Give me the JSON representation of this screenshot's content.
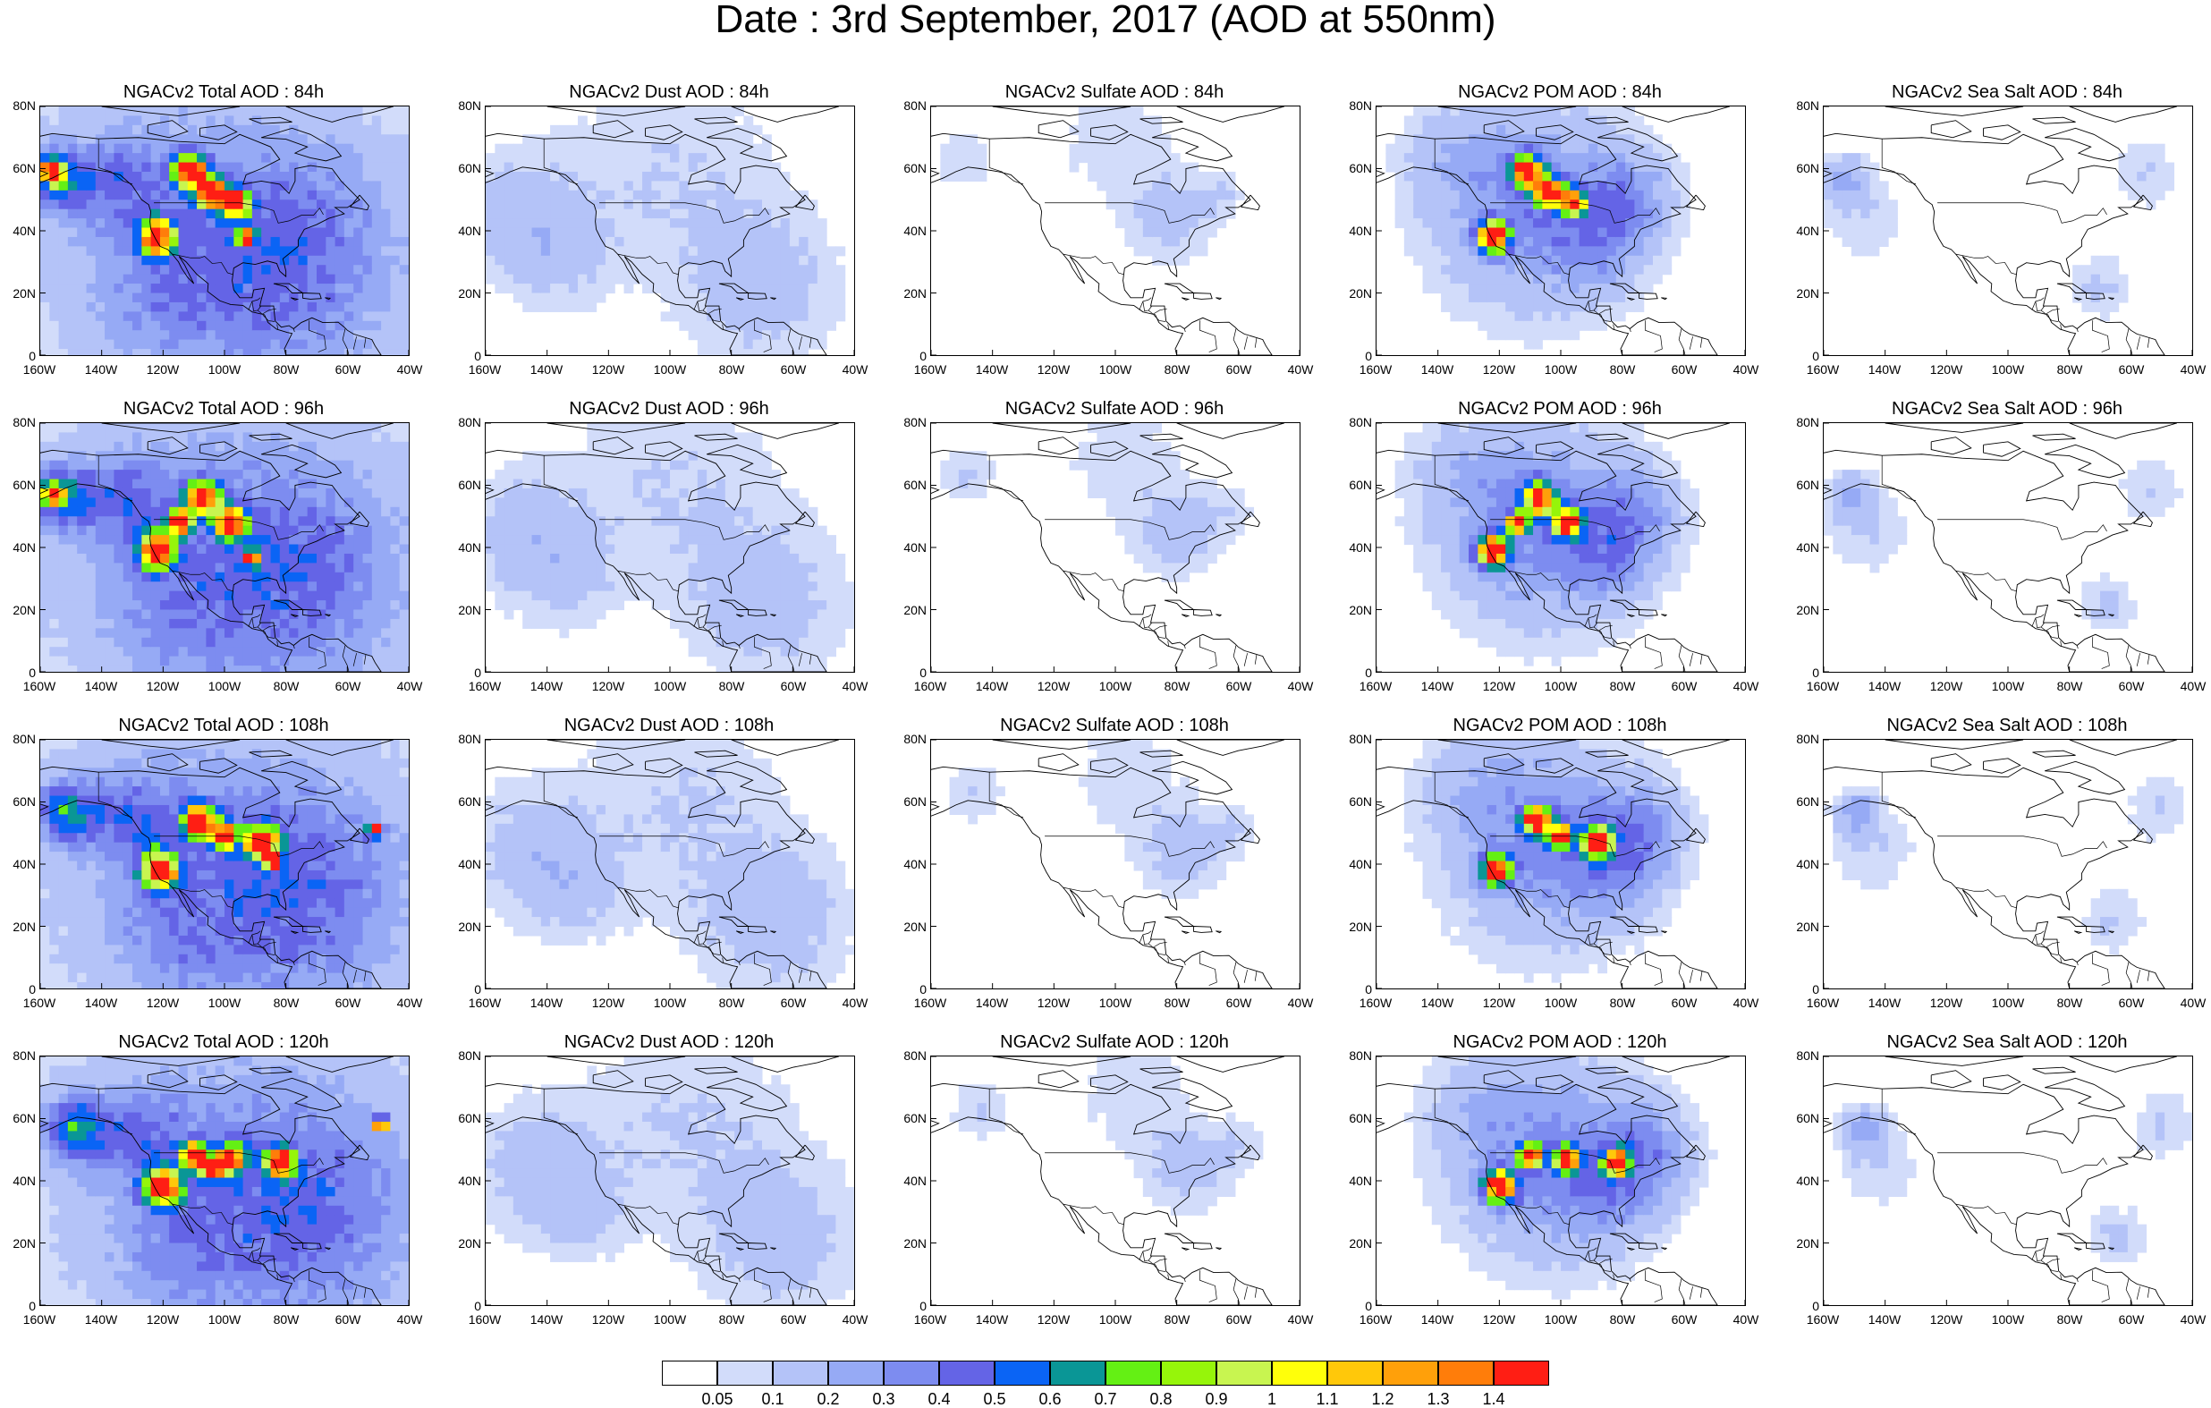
{
  "title": "Date : 3rd September, 2017 (AOD at 550nm)",
  "axes": {
    "lat_ticks": [
      "80N",
      "60N",
      "40N",
      "20N",
      "0"
    ],
    "lon_ticks": [
      "160W",
      "140W",
      "120W",
      "100W",
      "80W",
      "60W",
      "40W"
    ]
  },
  "panels": [
    {
      "title": "NGACv2 Total AOD : 84h",
      "species": "total",
      "hour": 84
    },
    {
      "title": "NGACv2 Dust AOD : 84h",
      "species": "dust",
      "hour": 84
    },
    {
      "title": "NGACv2 Sulfate AOD : 84h",
      "species": "sulfate",
      "hour": 84
    },
    {
      "title": "NGACv2 POM AOD : 84h",
      "species": "pom",
      "hour": 84
    },
    {
      "title": "NGACv2 Sea Salt AOD : 84h",
      "species": "seasalt",
      "hour": 84
    },
    {
      "title": "NGACv2 Total AOD : 96h",
      "species": "total",
      "hour": 96
    },
    {
      "title": "NGACv2 Dust AOD : 96h",
      "species": "dust",
      "hour": 96
    },
    {
      "title": "NGACv2 Sulfate AOD : 96h",
      "species": "sulfate",
      "hour": 96
    },
    {
      "title": "NGACv2 POM AOD : 96h",
      "species": "pom",
      "hour": 96
    },
    {
      "title": "NGACv2 Sea Salt AOD : 96h",
      "species": "seasalt",
      "hour": 96
    },
    {
      "title": "NGACv2 Total AOD : 108h",
      "species": "total",
      "hour": 108
    },
    {
      "title": "NGACv2 Dust AOD : 108h",
      "species": "dust",
      "hour": 108
    },
    {
      "title": "NGACv2 Sulfate AOD : 108h",
      "species": "sulfate",
      "hour": 108
    },
    {
      "title": "NGACv2 POM AOD : 108h",
      "species": "pom",
      "hour": 108
    },
    {
      "title": "NGACv2 Sea Salt AOD : 108h",
      "species": "seasalt",
      "hour": 108
    },
    {
      "title": "NGACv2 Total AOD : 120h",
      "species": "total",
      "hour": 120
    },
    {
      "title": "NGACv2 Dust AOD : 120h",
      "species": "dust",
      "hour": 120
    },
    {
      "title": "NGACv2 Sulfate AOD : 120h",
      "species": "sulfate",
      "hour": 120
    },
    {
      "title": "NGACv2 POM AOD : 120h",
      "species": "pom",
      "hour": 120
    },
    {
      "title": "NGACv2 Sea Salt  AOD : 120h",
      "species": "seasalt",
      "hour": 120
    }
  ],
  "colorbar": {
    "colors": [
      "#ffffff",
      "#d2dcfa",
      "#b4c3f8",
      "#96aaf5",
      "#7d8cf0",
      "#6464e6",
      "#0a64f5",
      "#0a9696",
      "#64f014",
      "#96f50a",
      "#c8f550",
      "#ffff0a",
      "#ffc80a",
      "#ffa00a",
      "#ff7d0a",
      "#ff1e14"
    ],
    "labels": [
      "0.05",
      "0.1",
      "0.2",
      "0.3",
      "0.4",
      "0.5",
      "0.6",
      "0.7",
      "0.8",
      "0.9",
      "1",
      "1.1",
      "1.2",
      "1.3",
      "1.4"
    ]
  },
  "map_colors": {
    "coastline": "#000000",
    "low_aod": "#d2dcfa",
    "medium_aod": "#96aaf5",
    "high_aod": "#6464e6",
    "extreme_aod": "#ff1e14"
  }
}
